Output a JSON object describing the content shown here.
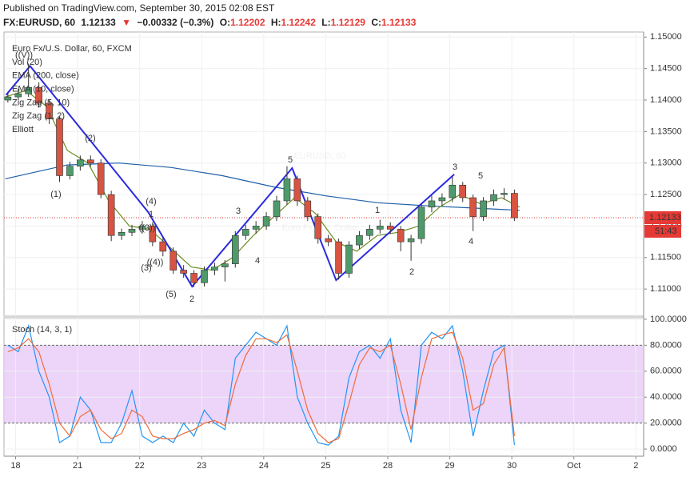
{
  "header": {
    "published": "Published on TradingView.com, September 30, 2015 02:08 EST",
    "symbol": "FX:EURUSD, 60",
    "price": "1.12133",
    "arrow": "▼",
    "change": "−0.00332 (−0.3%)",
    "ohlc": [
      {
        "label": "O:",
        "value": "1.12202"
      },
      {
        "label": "H:",
        "value": "1.12242"
      },
      {
        "label": "L:",
        "value": "1.12129"
      },
      {
        "label": "C:",
        "value": "1.12133"
      }
    ]
  },
  "chart_data": [
    {
      "type": "candlestick",
      "title": "Euro Fx/U.S. Dollar, 60, FXCM",
      "watermark": "EURUSD, 60",
      "watermark_subtitle": "Euro Fx/U.S. Dollar",
      "other_studies": [
        "Vol (20)",
        "Zig Zag (1, 2)",
        "Elliott"
      ],
      "x": [
        -3,
        1,
        5,
        9,
        13,
        17,
        21,
        25,
        29,
        33,
        37,
        41,
        45,
        49,
        53,
        57,
        61,
        65,
        69,
        73,
        77,
        81,
        85,
        89,
        93,
        97,
        101,
        105,
        109,
        113,
        117,
        121,
        125,
        129,
        133,
        137,
        141,
        145,
        149,
        153,
        157,
        161,
        165,
        169,
        173,
        177,
        181,
        185,
        189,
        193
      ],
      "open": [
        1.14,
        1.1405,
        1.141,
        1.142,
        1.1395,
        1.137,
        1.128,
        1.1295,
        1.1305,
        1.13,
        1.125,
        1.1185,
        1.119,
        1.1195,
        1.12,
        1.1175,
        1.116,
        1.113,
        1.1125,
        1.111,
        1.113,
        1.1135,
        1.114,
        1.1185,
        1.1195,
        1.12,
        1.1215,
        1.124,
        1.1275,
        1.124,
        1.1215,
        1.118,
        1.1175,
        1.1125,
        1.117,
        1.1185,
        1.1195,
        1.12,
        1.1195,
        1.1175,
        1.118,
        1.123,
        1.124,
        1.1245,
        1.1265,
        1.1245,
        1.1215,
        1.124,
        1.125,
        1.1252
      ],
      "high": [
        1.1412,
        1.1418,
        1.1458,
        1.1428,
        1.14,
        1.1374,
        1.1302,
        1.1312,
        1.1312,
        1.1306,
        1.1256,
        1.1196,
        1.1202,
        1.1208,
        1.1206,
        1.1182,
        1.1166,
        1.1138,
        1.113,
        1.1136,
        1.1142,
        1.1146,
        1.1192,
        1.1202,
        1.1208,
        1.1222,
        1.1248,
        1.1295,
        1.128,
        1.1246,
        1.122,
        1.1186,
        1.118,
        1.1176,
        1.1192,
        1.1202,
        1.121,
        1.1206,
        1.12,
        1.1186,
        1.1236,
        1.1248,
        1.1252,
        1.1278,
        1.127,
        1.125,
        1.1246,
        1.1258,
        1.126,
        1.1258
      ],
      "low": [
        1.1396,
        1.14,
        1.1405,
        1.1388,
        1.1362,
        1.127,
        1.1274,
        1.1288,
        1.1294,
        1.1244,
        1.1176,
        1.1178,
        1.1184,
        1.1188,
        1.1168,
        1.1152,
        1.1124,
        1.1118,
        1.1103,
        1.1104,
        1.1122,
        1.1112,
        1.1134,
        1.1178,
        1.1188,
        1.1194,
        1.1208,
        1.1234,
        1.1232,
        1.1208,
        1.1172,
        1.1168,
        1.1115,
        1.1118,
        1.1164,
        1.1178,
        1.1188,
        1.1188,
        1.116,
        1.1145,
        1.1172,
        1.1222,
        1.1232,
        1.1238,
        1.1238,
        1.1192,
        1.1208,
        1.1232,
        1.1242,
        1.1208
      ],
      "close": [
        1.1405,
        1.141,
        1.142,
        1.1395,
        1.137,
        1.128,
        1.1295,
        1.1305,
        1.13,
        1.125,
        1.1185,
        1.119,
        1.1195,
        1.12,
        1.1175,
        1.116,
        1.113,
        1.1125,
        1.111,
        1.113,
        1.1135,
        1.114,
        1.1185,
        1.1195,
        1.12,
        1.1215,
        1.124,
        1.1275,
        1.124,
        1.1215,
        1.118,
        1.1175,
        1.1125,
        1.117,
        1.1185,
        1.1195,
        1.12,
        1.1195,
        1.1175,
        1.118,
        1.123,
        1.124,
        1.1245,
        1.1265,
        1.1245,
        1.1215,
        1.124,
        1.125,
        1.1252,
        1.1213
      ],
      "up_color": "#4e9a6a",
      "down_color": "#d75442",
      "series": [
        {
          "name": "EMA (200, close)",
          "color": "#1e5fa8",
          "x": [
            -4,
            20,
            40,
            60,
            80,
            100,
            120,
            140,
            160,
            180,
            195
          ],
          "values": [
            1.1275,
            1.1297,
            1.13,
            1.1293,
            1.128,
            1.1262,
            1.1248,
            1.1237,
            1.1232,
            1.1228,
            1.1225
          ]
        },
        {
          "name": "EMA (10, close)",
          "color": "#6b8e23",
          "x": [
            -4,
            4,
            12,
            20,
            28,
            36,
            44,
            52,
            60,
            68,
            76,
            84,
            92,
            100,
            108,
            116,
            124,
            132,
            140,
            148,
            156,
            164,
            172,
            180,
            188,
            195
          ],
          "values": [
            1.1405,
            1.1415,
            1.139,
            1.132,
            1.13,
            1.124,
            1.12,
            1.1195,
            1.1165,
            1.1135,
            1.113,
            1.115,
            1.1185,
            1.1215,
            1.1245,
            1.122,
            1.1175,
            1.116,
            1.1185,
            1.119,
            1.12,
            1.123,
            1.125,
            1.1235,
            1.1245,
            1.123
          ]
        },
        {
          "name": "Zig Zag (5, 10)",
          "color": "#2a2ae0",
          "x": [
            -3.7,
            5.6,
            51.3,
            68.3,
            107,
            124,
            169.7
          ],
          "values": [
            1.1408,
            1.1454,
            1.1222,
            1.1104,
            1.1292,
            1.1114,
            1.1282
          ]
        }
      ],
      "annotations": [
        {
          "text": "((V))",
          "color": "#cc33cc"
        },
        {
          "text": "(1)",
          "color": "#2196f3"
        },
        {
          "text": "(2)",
          "color": "#2196f3"
        },
        {
          "text": "((3))",
          "color": "#e53935"
        },
        {
          "text": "(4)",
          "color": "#2196f3"
        },
        {
          "text": "((4))",
          "color": "#e53935"
        },
        {
          "text": "(3)",
          "color": "#2196f3"
        },
        {
          "text": "(5)",
          "color": "#2196f3"
        },
        {
          "text": "1",
          "color": "#cc33cc"
        },
        {
          "text": "2",
          "color": "#cc33cc"
        },
        {
          "text": "3",
          "color": "#cc33cc"
        },
        {
          "text": "4",
          "color": "#cc33cc"
        },
        {
          "text": "5",
          "color": "#cc33cc"
        },
        {
          "text": "1",
          "color": "#cc33cc"
        },
        {
          "text": "2",
          "color": "#cc33cc"
        },
        {
          "text": "3",
          "color": "#cc33cc"
        },
        {
          "text": "4",
          "color": "#cc33cc"
        },
        {
          "text": "5",
          "color": "#cc33cc"
        }
      ],
      "last_price": 1.12133,
      "last_color": "#e53935",
      "countdown": "51:43",
      "xlim": [
        -4.5,
        243
      ],
      "ylim": [
        1.1057,
        1.1508
      ],
      "yticks": [
        {
          "value": 1.15,
          "label": "1.15000"
        },
        {
          "value": 1.145,
          "label": "1.14500"
        },
        {
          "value": 1.14,
          "label": "1.14000"
        },
        {
          "value": 1.135,
          "label": "1.13500"
        },
        {
          "value": 1.13,
          "label": "1.13000"
        },
        {
          "value": 1.125,
          "label": "1.12500"
        },
        {
          "value": 1.12,
          "label": "1.12000"
        },
        {
          "value": 1.115,
          "label": "1.11500"
        },
        {
          "value": 1.11,
          "label": "1.11000"
        }
      ],
      "grid": true
    },
    {
      "type": "line",
      "title": "Stoch (14, 3, 1)",
      "x": [
        -3,
        1,
        5,
        9,
        13,
        17,
        21,
        25,
        29,
        33,
        37,
        41,
        45,
        49,
        53,
        57,
        61,
        65,
        69,
        73,
        77,
        81,
        85,
        89,
        93,
        97,
        101,
        105,
        109,
        113,
        117,
        121,
        125,
        129,
        133,
        137,
        141,
        145,
        149,
        153,
        157,
        161,
        165,
        169,
        173,
        177,
        181,
        185,
        189,
        193
      ],
      "series": [
        {
          "color": "#2196f3",
          "values": [
            80,
            75,
            95,
            60,
            40,
            5,
            10,
            40,
            30,
            5,
            5,
            20,
            45,
            10,
            5,
            10,
            5,
            20,
            10,
            30,
            20,
            15,
            70,
            80,
            90,
            85,
            80,
            95,
            40,
            20,
            5,
            3,
            10,
            55,
            75,
            80,
            70,
            85,
            30,
            5,
            80,
            90,
            85,
            95,
            60,
            10,
            45,
            75,
            80,
            3
          ]
        },
        {
          "color": "#ef6c39",
          "values": [
            75,
            78,
            85,
            75,
            50,
            20,
            10,
            25,
            30,
            15,
            8,
            12,
            30,
            25,
            10,
            8,
            8,
            12,
            15,
            20,
            22,
            18,
            50,
            72,
            85,
            85,
            82,
            88,
            60,
            30,
            12,
            5,
            8,
            35,
            65,
            78,
            75,
            80,
            50,
            15,
            55,
            85,
            88,
            90,
            70,
            30,
            35,
            65,
            78,
            10
          ]
        }
      ],
      "band": [
        20,
        80
      ],
      "band_color": "#e8c9f7",
      "xlim": [
        -4.5,
        243
      ],
      "ylim": [
        -5.5,
        101.2
      ],
      "yticks": [
        {
          "value": 100,
          "label": "100.0000"
        },
        {
          "value": 80,
          "label": "80.0000"
        },
        {
          "value": 60,
          "label": "60.0000"
        },
        {
          "value": 40,
          "label": "40.0000"
        },
        {
          "value": 20,
          "label": "20.0000"
        },
        {
          "value": 0,
          "label": "0.0000"
        }
      ],
      "xticks": [
        {
          "value": 0,
          "label": "18"
        },
        {
          "value": 24,
          "label": "21"
        },
        {
          "value": 48,
          "label": "22"
        },
        {
          "value": 72,
          "label": "23"
        },
        {
          "value": 96,
          "label": "24"
        },
        {
          "value": 120,
          "label": "25"
        },
        {
          "value": 144,
          "label": "28"
        },
        {
          "value": 168,
          "label": "29"
        },
        {
          "value": 192,
          "label": "30"
        },
        {
          "value": 216,
          "label": "Oct"
        },
        {
          "value": 240,
          "label": "2"
        }
      ]
    }
  ]
}
